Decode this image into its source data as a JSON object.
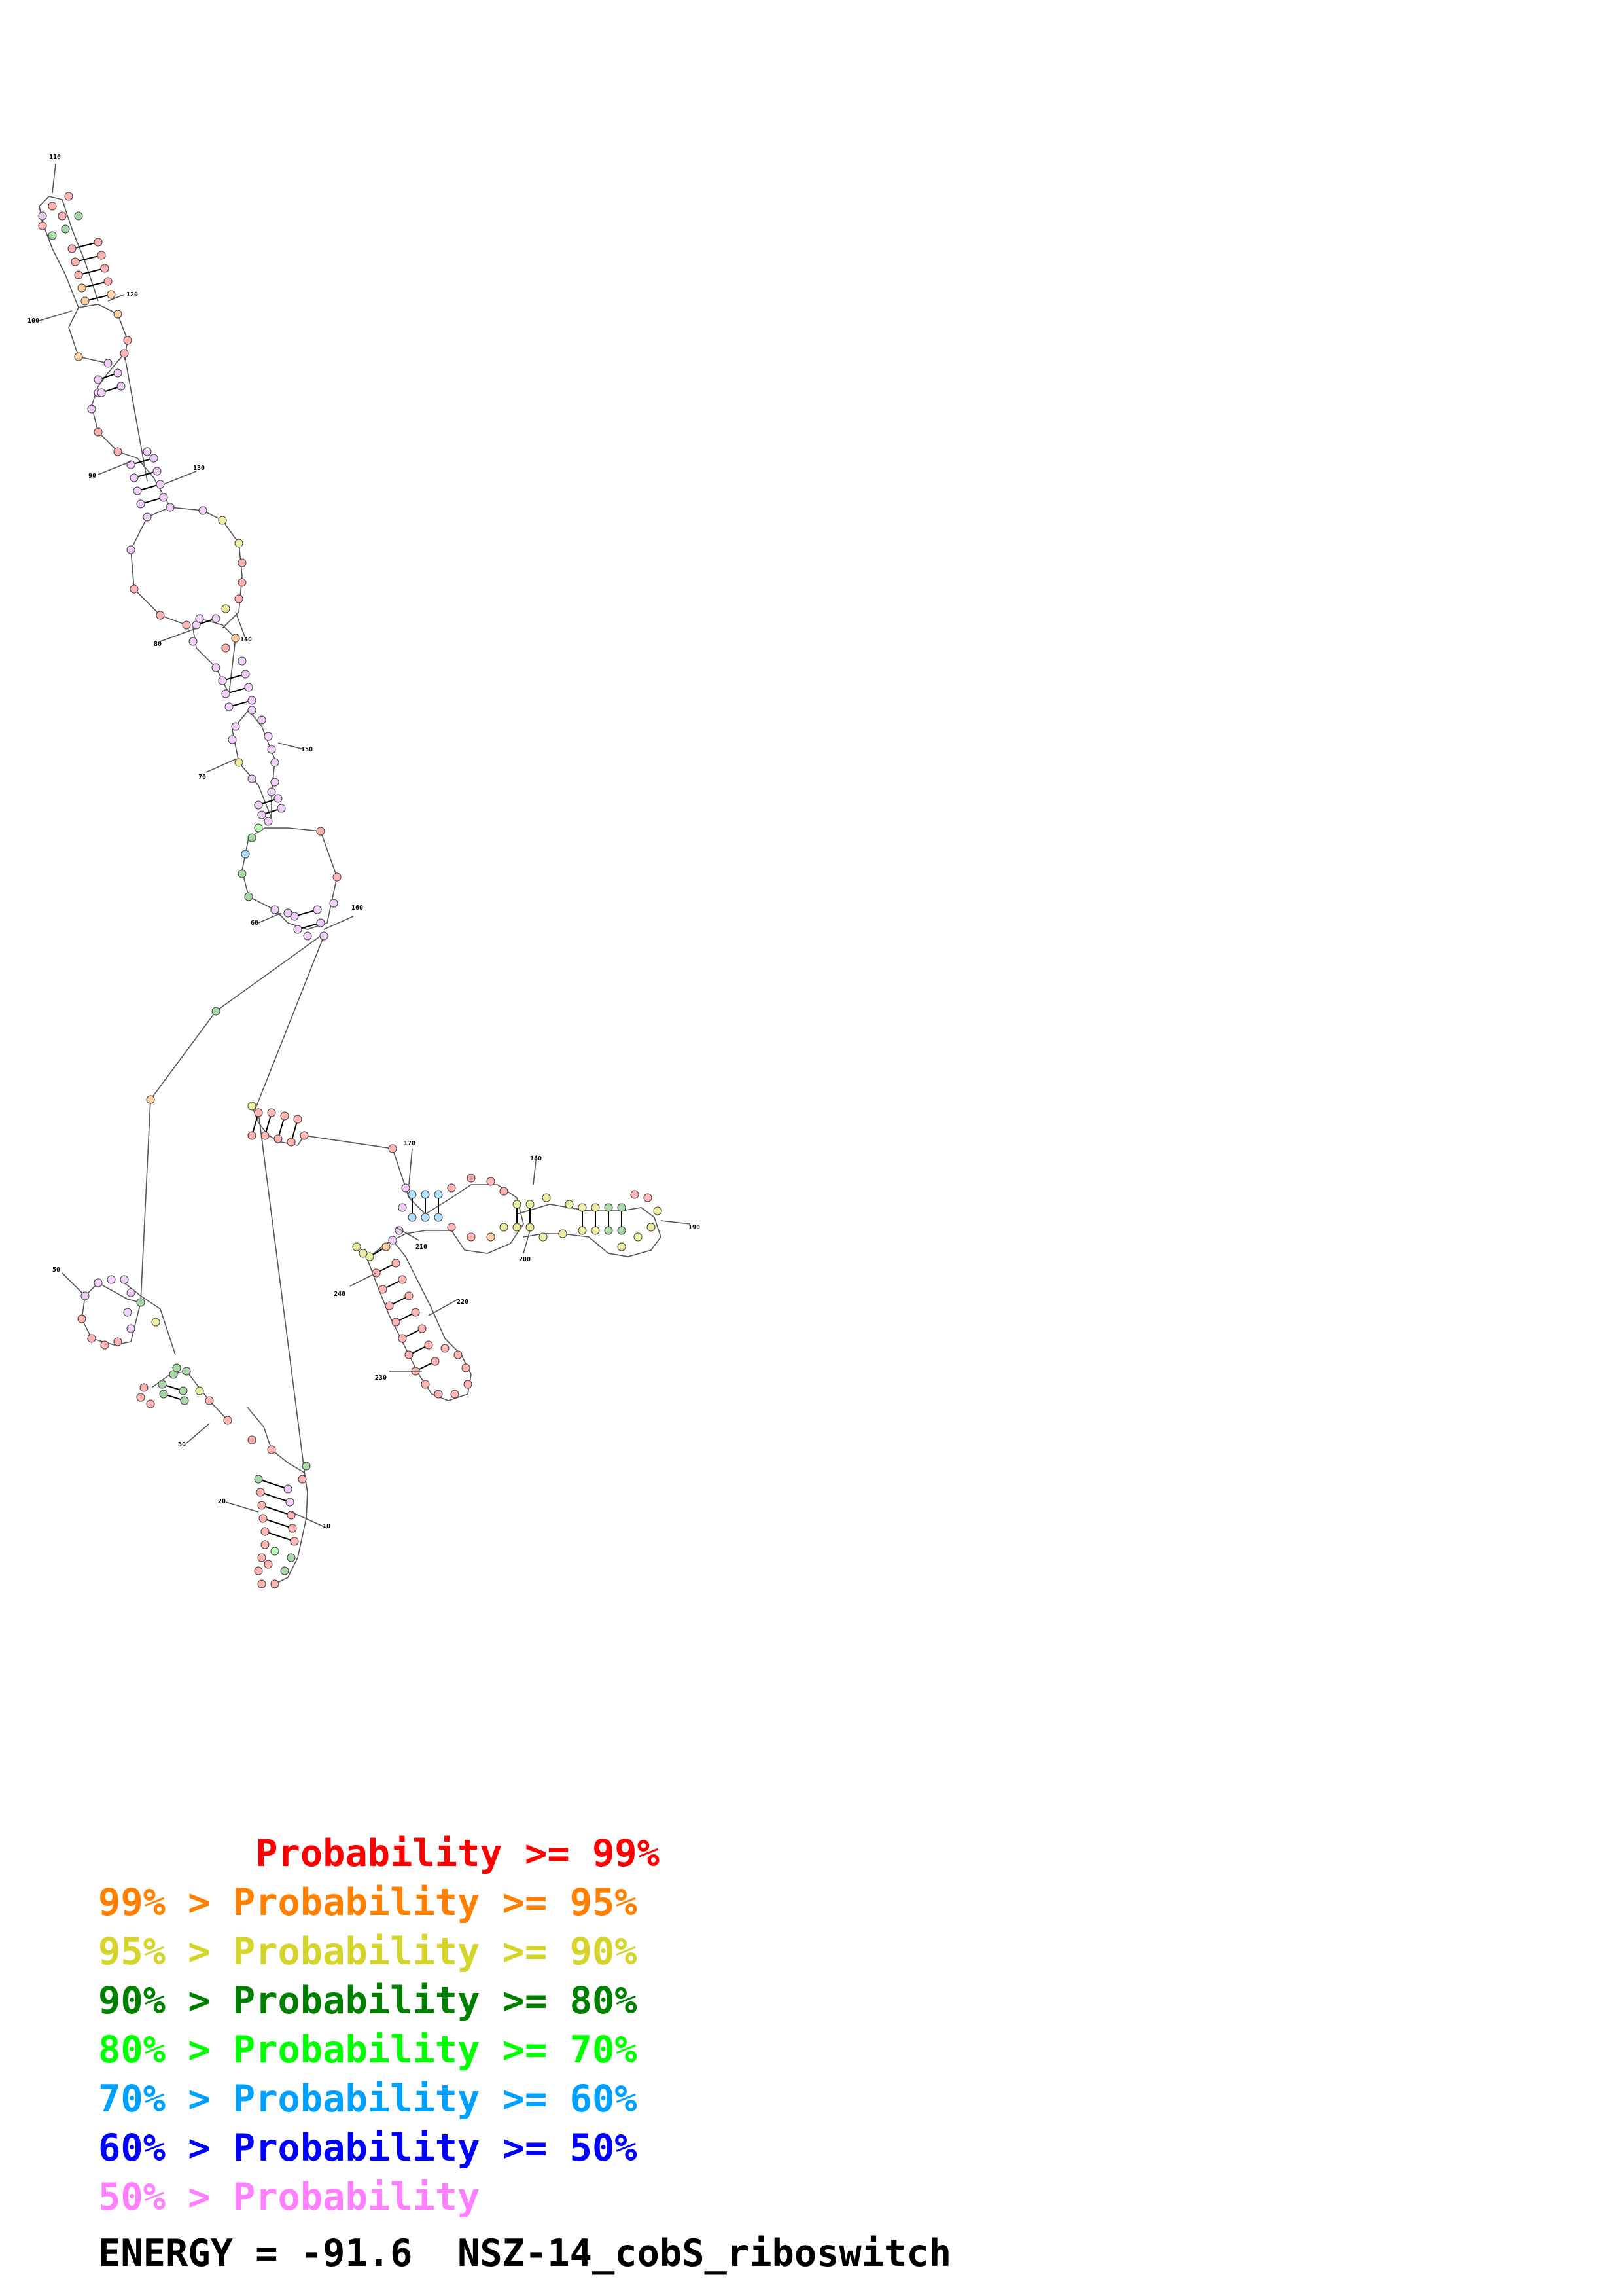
{
  "diagram": {
    "position_labels": [
      "10",
      "20",
      "30",
      "50",
      "60",
      "70",
      "80",
      "90",
      "100",
      "110",
      "120",
      "130",
      "140",
      "150",
      "160",
      "170",
      "180",
      "190",
      "200",
      "210",
      "220",
      "230",
      "240"
    ],
    "probability_colors": {
      "p99": "#ff0000",
      "p95": "#ff8000",
      "p90": "#d4d42a",
      "p80": "#007f00",
      "p70": "#00ff00",
      "p60": "#00a0ff",
      "p50": "#0000ff",
      "below50": "#ff80ff"
    }
  },
  "legend": {
    "rows": [
      {
        "prefix": "       ",
        "label": "Probability >= 99%",
        "color": "#ff0000"
      },
      {
        "prefix": "99% > ",
        "label": "Probability >= 95%",
        "color": "#ff8000"
      },
      {
        "prefix": "95% > ",
        "label": "Probability >= 90%",
        "color": "#d4d42a"
      },
      {
        "prefix": "90% > ",
        "label": "Probability >= 80%",
        "color": "#007f00"
      },
      {
        "prefix": "80% > ",
        "label": "Probability >= 70%",
        "color": "#00ff00"
      },
      {
        "prefix": "70% > ",
        "label": "Probability >= 60%",
        "color": "#00a0ff"
      },
      {
        "prefix": "60% > ",
        "label": "Probability >= 50%",
        "color": "#0000ff"
      },
      {
        "prefix": "50% > ",
        "label": "Probability",
        "color": "#ff80ff"
      }
    ]
  },
  "footer": {
    "text": "ENERGY = -91.6  NSZ-14_cobS_riboswitch"
  }
}
